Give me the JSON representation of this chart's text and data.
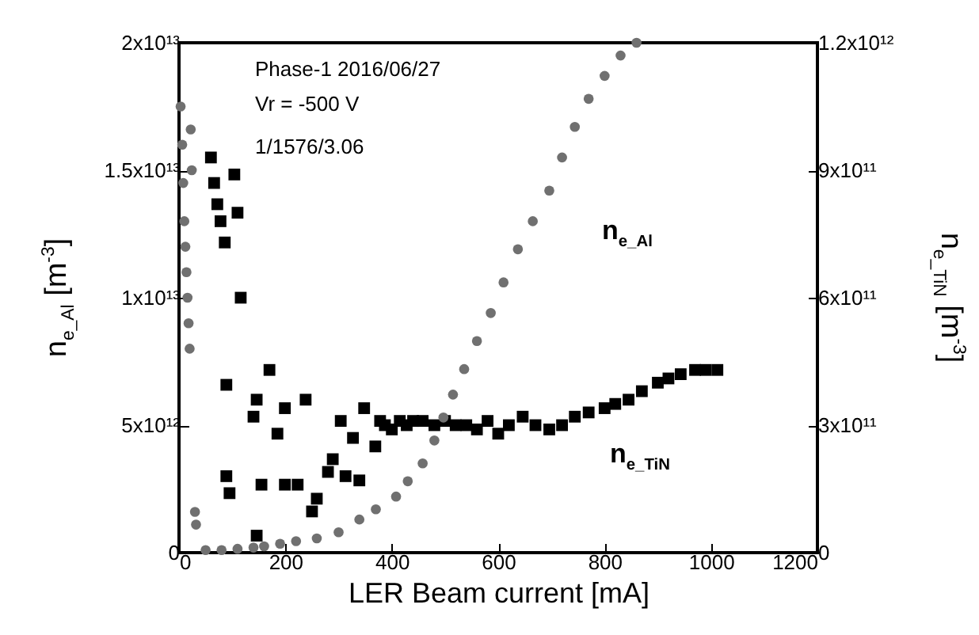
{
  "chart_data": {
    "type": "scatter",
    "xlabel": "LER Beam current [mA]",
    "ylabel": "n$_{e_Al}$ [m$^{-3}$]",
    "y2label": "n$_{e_TiN}$ [m$^{-3}$]",
    "annotations": [
      "Phase-1 2016/06/27",
      "Vr = -500 V",
      "1/1576/3.06"
    ],
    "xlim": [
      0,
      1200
    ],
    "xticks": [
      0,
      200,
      400,
      600,
      800,
      1000,
      1200
    ],
    "ylim": [
      0,
      20000000000000.0
    ],
    "yticks": [
      0,
      {
        "value": 5000000000000.0,
        "label": "5x10¹²"
      },
      {
        "value": 10000000000000.0,
        "label": "1x10¹³"
      },
      {
        "value": 15000000000000.0,
        "label": "1.5x10¹³"
      },
      {
        "value": 20000000000000.0,
        "label": "2x10¹³"
      }
    ],
    "y2lim": [
      0,
      1200000000000.0
    ],
    "y2ticks": [
      0,
      {
        "value": 300000000000.0,
        "label": "3x10¹¹"
      },
      {
        "value": 600000000000.0,
        "label": "6x10¹¹"
      },
      {
        "value": 900000000000.0,
        "label": "9x10¹¹"
      },
      {
        "value": 1200000000000.0,
        "label": "1.2x10¹²"
      }
    ],
    "grid": false,
    "series": [
      {
        "name": "n$_{e_Al}$",
        "color": "#707070",
        "marker": "circle",
        "x": [
          3,
          6,
          8,
          10,
          12,
          14,
          16,
          18,
          20,
          22,
          24,
          30,
          32,
          50,
          80,
          110,
          140,
          160,
          190,
          220,
          259,
          300,
          339,
          370,
          408,
          430,
          458,
          480,
          497,
          515,
          536,
          560,
          586,
          610,
          637,
          665,
          696,
          720,
          744,
          770,
          800,
          830,
          860
        ],
        "values": [
          17500000000000.0,
          16000000000000.0,
          14500000000000.0,
          13000000000000.0,
          12000000000000.0,
          11000000000000.0,
          10000000000000.0,
          9000000000000.0,
          8000000000000.0,
          16600000000000.0,
          15000000000000.0,
          1600000000000.0,
          1100000000000.0,
          100000000000.0,
          100000000000.0,
          150000000000.0,
          200000000000.0,
          250000000000.0,
          350000000000.0,
          450000000000.0,
          560000000000.0,
          800000000000.0,
          1300000000000.0,
          1700000000000.0,
          2200000000000.0,
          2800000000000.0,
          3500000000000.0,
          4400000000000.0,
          5300000000000.0,
          6200000000000.0,
          7200000000000.0,
          8300000000000.0,
          9400000000000.0,
          10600000000000.0,
          11900000000000.0,
          13000000000000.0,
          14200000000000.0,
          15500000000000.0,
          16700000000000.0,
          17800000000000.0,
          18700000000000.0,
          19500000000000.0,
          20000000000000.0
        ]
      },
      {
        "name": "n$_{e_TiN}$",
        "color": "#000000",
        "marker": "square",
        "axis": "y2",
        "x": [
          60,
          66,
          72,
          78,
          86,
          104,
          110,
          116,
          89,
          170,
          146,
          140,
          199,
          185,
          238,
          95,
          89,
          155,
          199,
          223,
          250,
          259,
          146,
          280,
          289,
          304,
          327,
          313,
          339,
          348,
          369,
          378,
          387,
          400,
          415,
          428,
          440,
          458,
          480,
          500,
          520,
          540,
          560,
          580,
          600,
          620,
          646,
          670,
          696,
          720,
          744,
          770,
          800,
          820,
          845,
          870,
          900,
          920,
          943,
          970,
          990,
          1012
        ],
        "values": [
          930000000000.0,
          870000000000.0,
          820000000000.0,
          780000000000.0,
          730000000000.0,
          890000000000.0,
          800000000000.0,
          600000000000.0,
          395000000000.0,
          430000000000.0,
          360000000000.0,
          320000000000.0,
          340000000000.0,
          280000000000.0,
          360000000000.0,
          140000000000.0,
          180000000000.0,
          160000000000.0,
          160000000000.0,
          160000000000.0,
          97000000000.0,
          127000000000.0,
          40000000000.0,
          190000000000.0,
          220000000000.0,
          310000000000.0,
          270000000000.0,
          180000000000.0,
          170000000000.0,
          340000000000.0,
          250000000000.0,
          310000000000.0,
          300000000000.0,
          290000000000.0,
          310000000000.0,
          300000000000.0,
          310000000000.0,
          310000000000.0,
          300000000000.0,
          310000000000.0,
          300000000000.0,
          300000000000.0,
          290000000000.0,
          310000000000.0,
          280000000000.0,
          300000000000.0,
          320000000000.0,
          300000000000.0,
          290000000000.0,
          300000000000.0,
          320000000000.0,
          330000000000.0,
          340000000000.0,
          350000000000.0,
          360000000000.0,
          380000000000.0,
          400000000000.0,
          410000000000.0,
          420000000000.0,
          430000000000.0,
          430000000000.0,
          430000000000.0
        ]
      }
    ]
  }
}
